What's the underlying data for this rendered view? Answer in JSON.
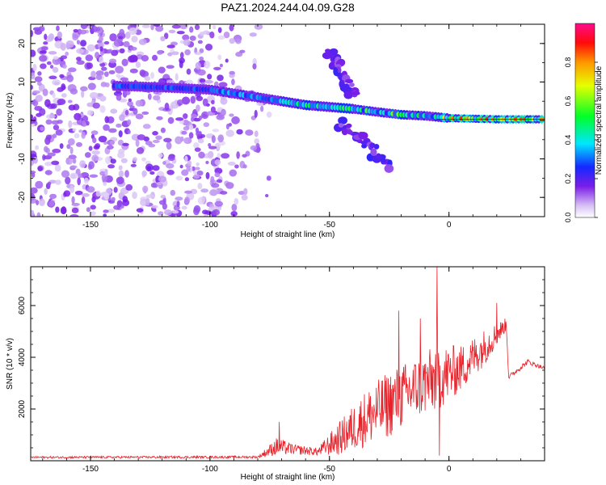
{
  "title": "PAZ1.2024.244.04.09.G28",
  "chart_data": [
    {
      "type": "heatmap",
      "xlabel": "Height of straight line (km)",
      "ylabel": "Frequency (Hz)",
      "xlim": [
        -175,
        40
      ],
      "ylim": [
        -25,
        25
      ],
      "xticks": [
        -150,
        -100,
        -50,
        0
      ],
      "yticks": [
        -20,
        -10,
        0,
        10,
        20
      ],
      "colorbar": {
        "label": "Normalized spectral amplitude",
        "range": [
          0,
          1
        ],
        "ticks": [
          "0.0",
          "0.2",
          "0.4",
          "0.6",
          "0.8"
        ]
      },
      "ridge": [
        {
          "x": -140,
          "y": 9
        },
        {
          "x": -120,
          "y": 8.6
        },
        {
          "x": -100,
          "y": 8
        },
        {
          "x": -90,
          "y": 7
        },
        {
          "x": -80,
          "y": 6
        },
        {
          "x": -70,
          "y": 5
        },
        {
          "x": -60,
          "y": 4
        },
        {
          "x": -50,
          "y": 3.5
        },
        {
          "x": -40,
          "y": 3
        },
        {
          "x": -30,
          "y": 2.2
        },
        {
          "x": -20,
          "y": 1.5
        },
        {
          "x": -10,
          "y": 1.2
        },
        {
          "x": 0,
          "y": 0.6
        },
        {
          "x": 20,
          "y": 0.3
        },
        {
          "x": 40,
          "y": 0.3
        }
      ],
      "noise_region_x": [
        -175,
        -85
      ],
      "side_branches": [
        {
          "name": "upper",
          "points": [
            {
              "x": -50,
              "y": 18
            },
            {
              "x": -45,
              "y": 12
            },
            {
              "x": -40,
              "y": 6
            }
          ]
        },
        {
          "name": "lower",
          "points": [
            {
              "x": -45,
              "y": -1
            },
            {
              "x": -35,
              "y": -6
            },
            {
              "x": -25,
              "y": -12
            }
          ]
        }
      ]
    },
    {
      "type": "line",
      "xlabel": "Height of straight line (km)",
      "ylabel": "SNR (10 * v/v)",
      "xlim": [
        -175,
        40
      ],
      "ylim": [
        0,
        7500
      ],
      "xticks": [
        -150,
        -100,
        -50,
        0
      ],
      "yticks": [
        2000,
        4000,
        6000
      ],
      "line_color": "#e8222a",
      "envelope": [
        {
          "x": -175,
          "base": 120,
          "amp": 80
        },
        {
          "x": -80,
          "base": 130,
          "amp": 90
        },
        {
          "x": -72,
          "base": 450,
          "amp": 700
        },
        {
          "x": -65,
          "base": 380,
          "amp": 400
        },
        {
          "x": -55,
          "base": 300,
          "amp": 300
        },
        {
          "x": -45,
          "base": 700,
          "amp": 1400
        },
        {
          "x": -35,
          "base": 1300,
          "amp": 2200
        },
        {
          "x": -25,
          "base": 1800,
          "amp": 2600
        },
        {
          "x": -15,
          "base": 2400,
          "amp": 2400
        },
        {
          "x": -5,
          "base": 2800,
          "amp": 2600
        },
        {
          "x": 5,
          "base": 3300,
          "amp": 1800
        },
        {
          "x": 15,
          "base": 4200,
          "amp": 1400
        },
        {
          "x": 24,
          "base": 5200,
          "amp": 500
        },
        {
          "x": 25,
          "base": 3200,
          "amp": 200
        },
        {
          "x": 33,
          "base": 3800,
          "amp": 200
        },
        {
          "x": 40,
          "base": 3550,
          "amp": 150
        }
      ],
      "spikes": [
        {
          "x": -71,
          "y": 1500
        },
        {
          "x": -21,
          "y": 5800
        },
        {
          "x": -12,
          "y": 5500
        },
        {
          "x": -5,
          "y": 7500
        },
        {
          "x": -4,
          "y": 200
        },
        {
          "x": 20,
          "y": 6100
        }
      ]
    }
  ]
}
